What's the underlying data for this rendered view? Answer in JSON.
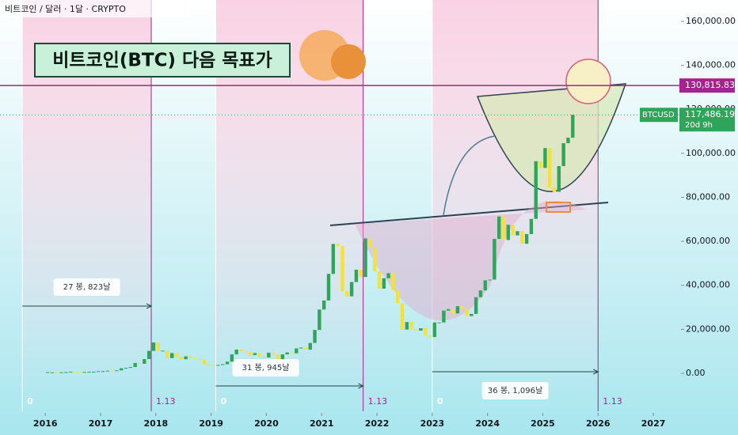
{
  "header": "비트코인 / 달러 · 1달 · CRYPTO",
  "chart_data": {
    "type": "candlestick",
    "title": "비트코인(BTC) 다음 목표가",
    "x": [
      "2016-01",
      "2016-02",
      "2016-03",
      "2016-04",
      "2016-05",
      "2016-06",
      "2016-07",
      "2016-08",
      "2016-09",
      "2016-10",
      "2016-11",
      "2016-12",
      "2017-01",
      "2017-02",
      "2017-03",
      "2017-04",
      "2017-05",
      "2017-06",
      "2017-07",
      "2017-08",
      "2017-09",
      "2017-10",
      "2017-11",
      "2017-12",
      "2018-01",
      "2018-02",
      "2018-03",
      "2018-04",
      "2018-05",
      "2018-06",
      "2018-07",
      "2018-08",
      "2018-09",
      "2018-10",
      "2018-11",
      "2018-12",
      "2019-01",
      "2019-02",
      "2019-03",
      "2019-04",
      "2019-05",
      "2019-06",
      "2019-07",
      "2019-08",
      "2019-09",
      "2019-10",
      "2019-11",
      "2019-12",
      "2020-01",
      "2020-02",
      "2020-03",
      "2020-04",
      "2020-05",
      "2020-06",
      "2020-07",
      "2020-08",
      "2020-09",
      "2020-10",
      "2020-11",
      "2020-12",
      "2021-01",
      "2021-02",
      "2021-03",
      "2021-04",
      "2021-05",
      "2021-06",
      "2021-07",
      "2021-08",
      "2021-09",
      "2021-10",
      "2021-11",
      "2021-12",
      "2022-01",
      "2022-02",
      "2022-03",
      "2022-04",
      "2022-05",
      "2022-06",
      "2022-07",
      "2022-08",
      "2022-09",
      "2022-10",
      "2022-11",
      "2022-12",
      "2023-01",
      "2023-02",
      "2023-03",
      "2023-04",
      "2023-05",
      "2023-06",
      "2023-07",
      "2023-08",
      "2023-09",
      "2023-10",
      "2023-11",
      "2023-12",
      "2024-01",
      "2024-02",
      "2024-03",
      "2024-04",
      "2024-05",
      "2024-06",
      "2024-07",
      "2024-08",
      "2024-09",
      "2024-10",
      "2024-11",
      "2024-12",
      "2025-01",
      "2025-02",
      "2025-03",
      "2025-04",
      "2025-05",
      "2025-06",
      "2025-07"
    ],
    "series": [
      {
        "name": "BTCUSD",
        "up_color": "#2ea55a",
        "down_color": "#f5e13c",
        "values": [
          368,
          437,
          416,
          448,
          531,
          673,
          624,
          575,
          609,
          700,
          742,
          964,
          970,
          1190,
          1080,
          1350,
          2300,
          2480,
          2880,
          4700,
          4340,
          6470,
          10200,
          14000,
          10200,
          10300,
          6900,
          9200,
          7500,
          6400,
          7700,
          7000,
          6600,
          6300,
          4000,
          3700,
          3450,
          3800,
          4100,
          5300,
          8600,
          10800,
          10100,
          9600,
          8300,
          9200,
          7600,
          7200,
          9350,
          8600,
          6400,
          8600,
          9500,
          9100,
          11300,
          11700,
          10800,
          13800,
          19700,
          29000,
          33100,
          45200,
          58800,
          57700,
          37300,
          35000,
          41500,
          47100,
          43800,
          61300,
          57000,
          46300,
          38500,
          43200,
          45500,
          37700,
          31800,
          19900,
          23300,
          20000,
          19400,
          20500,
          17200,
          16500,
          23100,
          23100,
          28500,
          29200,
          27200,
          30500,
          29200,
          26000,
          27000,
          34600,
          37700,
          42300,
          42600,
          61100,
          71300,
          60600,
          67500,
          62700,
          64600,
          58900,
          63300,
          70200,
          96400,
          93400,
          102400,
          84300,
          82500,
          94200,
          104600,
          107100,
          117486.19
        ]
      }
    ],
    "xlim": [
      2015.18,
      2027.5
    ],
    "xticks": [
      2016,
      2017,
      2018,
      2019,
      2020,
      2021,
      2022,
      2023,
      2024,
      2025,
      2026,
      2027
    ],
    "ylim": [
      -17260,
      169700
    ],
    "yticks": [
      {
        "value": 0,
        "label": "0.00"
      },
      {
        "value": 20000,
        "label": "20,000.00"
      },
      {
        "value": 40000,
        "label": "40,000.00"
      },
      {
        "value": 60000,
        "label": "60,000.00"
      },
      {
        "value": 80000,
        "label": "80,000.00"
      },
      {
        "value": 100000,
        "label": "100,000.00"
      },
      {
        "value": 120000,
        "label": "120,000.00"
      },
      {
        "value": 140000,
        "label": "140,000.00"
      },
      {
        "value": 160000,
        "label": "160,000.00"
      }
    ],
    "price_line": {
      "value": 130815.83,
      "label": "130,815.83",
      "color": "#a3238f"
    },
    "last_price": {
      "value": 117486.19,
      "label": "117,486.19",
      "symbol": "BTCUSD",
      "countdown": "20d 9h"
    },
    "cycles": [
      {
        "start": "2015-08",
        "start_label": "0",
        "end": "2017-12",
        "end_label": "1.13",
        "note": "27 봉, 823날"
      },
      {
        "start": "2019-02",
        "start_label": "0",
        "end": "2021-10",
        "end_label": "1.13",
        "note": "31 봉, 945날"
      },
      {
        "start": "2023-01",
        "start_label": "0",
        "end": "2026-01",
        "end_label": "1.13",
        "note": "36 봉, 1,096날"
      }
    ]
  }
}
